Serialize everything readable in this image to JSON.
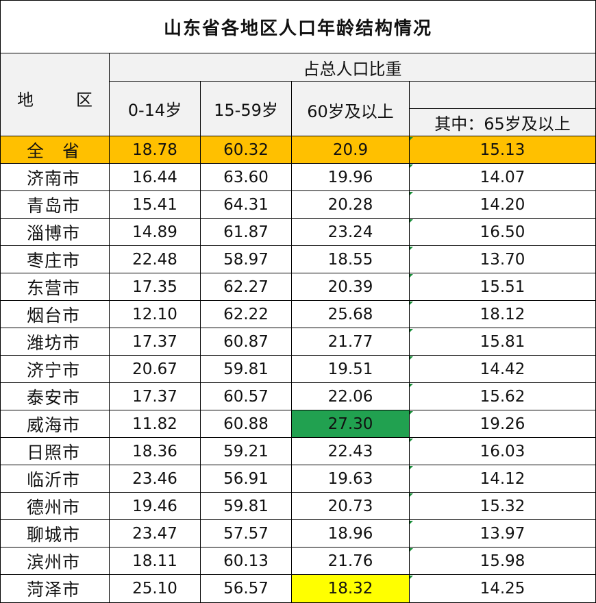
{
  "title": "山东省各地区人口年龄结构情况",
  "header": {
    "region_label_1": "地",
    "region_label_2": "区",
    "group_label": "占总人口比重",
    "col1": "0-14岁",
    "col2": "15-59岁",
    "col3": "60岁及以上",
    "col4": "其中：65岁及以上"
  },
  "colors": {
    "province_row": "#ffc000",
    "highlight_max": "#21a150",
    "highlight_min": "#ffff00",
    "header_bg": "#f2f2f2"
  },
  "rows": [
    {
      "region": "全　省",
      "a": "18.78",
      "b": "60.32",
      "c": "20.9",
      "d": "15.13"
    },
    {
      "region": "济南市",
      "a": "16.44",
      "b": "63.60",
      "c": "19.96",
      "d": "14.07"
    },
    {
      "region": "青岛市",
      "a": "15.41",
      "b": "64.31",
      "c": "20.28",
      "d": "14.20"
    },
    {
      "region": "淄博市",
      "a": "14.89",
      "b": "61.87",
      "c": "23.24",
      "d": "16.50"
    },
    {
      "region": "枣庄市",
      "a": "22.48",
      "b": "58.97",
      "c": "18.55",
      "d": "13.70"
    },
    {
      "region": "东营市",
      "a": "17.35",
      "b": "62.27",
      "c": "20.39",
      "d": "15.51"
    },
    {
      "region": "烟台市",
      "a": "12.10",
      "b": "62.22",
      "c": "25.68",
      "d": "18.12"
    },
    {
      "region": "潍坊市",
      "a": "17.37",
      "b": "60.87",
      "c": "21.77",
      "d": "15.81"
    },
    {
      "region": "济宁市",
      "a": "20.67",
      "b": "59.81",
      "c": "19.51",
      "d": "14.42"
    },
    {
      "region": "泰安市",
      "a": "17.37",
      "b": "60.57",
      "c": "22.06",
      "d": "15.62"
    },
    {
      "region": "威海市",
      "a": "11.82",
      "b": "60.88",
      "c": "27.30",
      "d": "19.26"
    },
    {
      "region": "日照市",
      "a": "18.36",
      "b": "59.21",
      "c": "22.43",
      "d": "16.03"
    },
    {
      "region": "临沂市",
      "a": "23.46",
      "b": "56.91",
      "c": "19.63",
      "d": "14.12"
    },
    {
      "region": "德州市",
      "a": "19.46",
      "b": "59.81",
      "c": "20.73",
      "d": "15.32"
    },
    {
      "region": "聊城市",
      "a": "23.47",
      "b": "57.57",
      "c": "18.96",
      "d": "13.97"
    },
    {
      "region": "滨州市",
      "a": "18.11",
      "b": "60.13",
      "c": "21.76",
      "d": "15.98"
    },
    {
      "region": "菏泽市",
      "a": "25.10",
      "b": "56.57",
      "c": "18.32",
      "d": "14.25"
    }
  ]
}
